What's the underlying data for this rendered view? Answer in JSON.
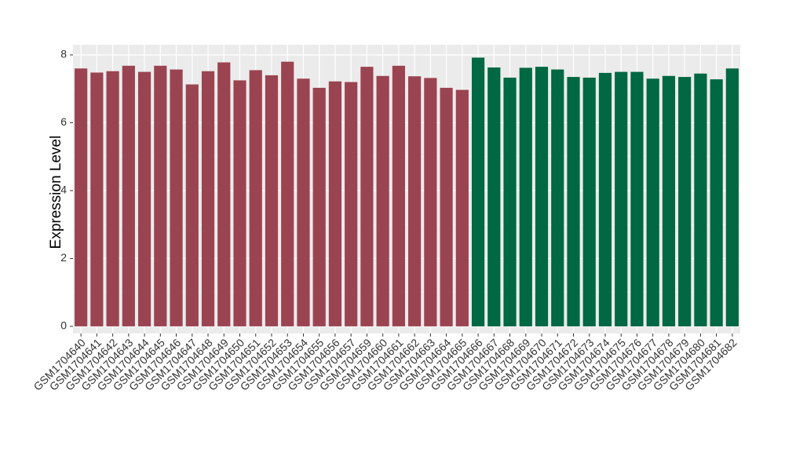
{
  "chart_data": {
    "type": "bar",
    "y_label": "Expression Level",
    "categories": [
      "GSM1704640",
      "GSM1704641",
      "GSM1704642",
      "GSM1704643",
      "GSM1704644",
      "GSM1704645",
      "GSM1704646",
      "GSM1704647",
      "GSM1704648",
      "GSM1704649",
      "GSM1704650",
      "GSM1704651",
      "GSM1704652",
      "GSM1704653",
      "GSM1704654",
      "GSM1704655",
      "GSM1704656",
      "GSM1704657",
      "GSM1704659",
      "GSM1704660",
      "GSM1704661",
      "GSM1704662",
      "GSM1704663",
      "GSM1704664",
      "GSM1704665",
      "GSM1704666",
      "GSM1704667",
      "GSM1704668",
      "GSM1704669",
      "GSM1704670",
      "GSM1704671",
      "GSM1704672",
      "GSM1704673",
      "GSM1704674",
      "GSM1704675",
      "GSM1704676",
      "GSM1704677",
      "GSM1704678",
      "GSM1704679",
      "GSM1704680",
      "GSM1704681",
      "GSM1704682"
    ],
    "values": [
      7.6,
      7.48,
      7.52,
      7.68,
      7.5,
      7.68,
      7.57,
      7.13,
      7.52,
      7.78,
      7.25,
      7.55,
      7.4,
      7.8,
      7.3,
      7.03,
      7.22,
      7.2,
      7.65,
      7.38,
      7.68,
      7.37,
      7.32,
      7.03,
      6.97,
      7.92,
      7.63,
      7.33,
      7.62,
      7.65,
      7.57,
      7.35,
      7.33,
      7.47,
      7.5,
      7.5,
      7.3,
      7.38,
      7.35,
      7.45,
      7.28,
      7.6
    ],
    "colors": [
      "#9b4451",
      "#9b4451",
      "#9b4451",
      "#9b4451",
      "#9b4451",
      "#9b4451",
      "#9b4451",
      "#9b4451",
      "#9b4451",
      "#9b4451",
      "#9b4451",
      "#9b4451",
      "#9b4451",
      "#9b4451",
      "#9b4451",
      "#9b4451",
      "#9b4451",
      "#9b4451",
      "#9b4451",
      "#9b4451",
      "#9b4451",
      "#9b4451",
      "#9b4451",
      "#9b4451",
      "#9b4451",
      "#006843",
      "#006843",
      "#006843",
      "#006843",
      "#006843",
      "#006843",
      "#006843",
      "#006843",
      "#006843",
      "#006843",
      "#006843",
      "#006843",
      "#006843",
      "#006843",
      "#006843",
      "#006843",
      "#006843"
    ],
    "ylim": [
      -0.21,
      8.3
    ],
    "yticks": [
      0,
      2,
      4,
      6,
      8
    ],
    "grid": true
  }
}
